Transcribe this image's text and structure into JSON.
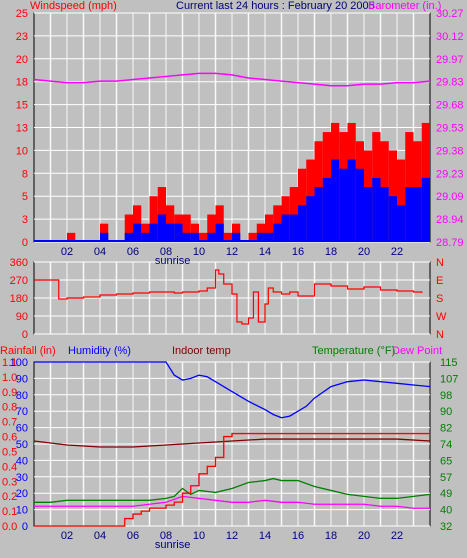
{
  "colors": {
    "background": "#c0c0c0",
    "plot_bg": "#c0c0c0",
    "grid": "#ffffff",
    "wind_gust": "#ff0000",
    "wind_avg": "#0000ff",
    "barometer": "#ff00ff",
    "direction": "#ff0000",
    "rainfall": "#ff0000",
    "humidity": "#0000ff",
    "indoor": "#800000",
    "temperature": "#008000",
    "dewpoint": "#ff00ff",
    "axis_text_time": "#000080"
  },
  "header": {
    "left": "Windspeed (mph)",
    "center": "Current last 24 hours : February 20 2005",
    "right": "Barometer (in.)"
  },
  "time_labels": [
    "02",
    "04",
    "06",
    "08",
    "10",
    "12",
    "14",
    "16",
    "18",
    "20",
    "22"
  ],
  "sunrise_label": "sunrise",
  "chart_data": [
    {
      "type": "line",
      "title": "Current last 24 hours : February 20 2005",
      "ylabel": "Windspeed (mph)",
      "y2label": "Barometer (in.)",
      "x_unit": "hour",
      "xlim": [
        0,
        24
      ],
      "ylim": [
        0,
        25
      ],
      "y2lim": [
        28.79,
        30.27
      ],
      "y_ticks": [
        "0",
        "3",
        "5",
        "8",
        "10",
        "13",
        "15",
        "18",
        "20",
        "23",
        "25"
      ],
      "y2_ticks": [
        "28.79",
        "28.94",
        "29.09",
        "29.23",
        "29.38",
        "29.53",
        "29.68",
        "29.83",
        "29.97",
        "30.12",
        "30.27"
      ],
      "grid": true,
      "series": [
        {
          "name": "Barometer",
          "axis": "y2",
          "x": [
            0,
            1,
            2,
            3,
            4,
            5,
            6,
            7,
            8,
            9,
            10,
            11,
            12,
            13,
            14,
            15,
            16,
            17,
            18,
            19,
            20,
            21,
            22,
            23,
            24
          ],
          "values": [
            29.84,
            29.83,
            29.82,
            29.82,
            29.83,
            29.83,
            29.84,
            29.85,
            29.86,
            29.87,
            29.88,
            29.88,
            29.87,
            29.85,
            29.84,
            29.83,
            29.82,
            29.81,
            29.8,
            29.8,
            29.81,
            29.81,
            29.82,
            29.82,
            29.83
          ]
        },
        {
          "name": "Windspeed gust",
          "axis": "y",
          "x": [
            0,
            1,
            2,
            3,
            4,
            5,
            5.5,
            6,
            6.5,
            7,
            7.5,
            8,
            8.5,
            9,
            9.5,
            10,
            10.5,
            11,
            11.5,
            12,
            12.5,
            13,
            13.5,
            14,
            14.5,
            15,
            15.5,
            16,
            16.5,
            17,
            17.5,
            18,
            18.5,
            19,
            19.5,
            20,
            20.5,
            21,
            21.5,
            22,
            22.5,
            23,
            23.5
          ],
          "values": [
            0,
            0,
            1,
            0,
            2,
            0,
            3,
            4,
            2,
            5,
            6,
            4,
            3,
            3,
            2,
            1,
            3,
            4,
            1,
            2,
            0,
            1,
            2,
            3,
            4,
            5,
            6,
            8,
            9,
            11,
            12,
            13,
            12,
            13,
            11,
            10,
            12,
            11,
            10,
            9,
            12,
            11,
            13
          ]
        },
        {
          "name": "Windspeed average",
          "axis": "y",
          "x": [
            0,
            1,
            2,
            3,
            4,
            5,
            5.5,
            6,
            6.5,
            7,
            7.5,
            8,
            8.5,
            9,
            9.5,
            10,
            10.5,
            11,
            11.5,
            12,
            12.5,
            13,
            13.5,
            14,
            14.5,
            15,
            15.5,
            16,
            16.5,
            17,
            17.5,
            18,
            18.5,
            19,
            19.5,
            20,
            20.5,
            21,
            21.5,
            22,
            22.5,
            23,
            23.5
          ],
          "values": [
            0,
            0,
            0,
            0,
            1,
            0,
            1,
            2,
            1,
            2,
            3,
            2,
            2,
            1,
            1,
            0,
            1,
            2,
            0,
            1,
            0,
            0,
            1,
            1,
            2,
            3,
            3,
            4,
            5,
            6,
            7,
            9,
            8,
            9,
            8,
            6,
            7,
            6,
            5,
            4,
            6,
            6,
            7
          ]
        }
      ]
    },
    {
      "type": "line",
      "ylabel": "Wind direction",
      "x_unit": "hour",
      "xlim": [
        0,
        24
      ],
      "ylim": [
        0,
        360
      ],
      "y_ticks": [
        "0",
        "90",
        "180",
        "270",
        "360"
      ],
      "y2_ticks": [
        "N",
        "W",
        "S",
        "E",
        "N"
      ],
      "grid": true,
      "series": [
        {
          "name": "Wind direction",
          "x": [
            0,
            1,
            1.5,
            2,
            3,
            4,
            5,
            6,
            7,
            8,
            8.5,
            9,
            10,
            10.5,
            11,
            11.2,
            11.5,
            12,
            12.3,
            12.6,
            13,
            13.3,
            13.6,
            14,
            14.2,
            14.5,
            15,
            15.5,
            16,
            17,
            18,
            19,
            20,
            21,
            22,
            23,
            23.5
          ],
          "values": [
            270,
            270,
            175,
            180,
            185,
            195,
            200,
            205,
            210,
            210,
            205,
            210,
            215,
            230,
            320,
            300,
            250,
            200,
            60,
            50,
            80,
            210,
            60,
            150,
            230,
            210,
            200,
            210,
            190,
            250,
            240,
            225,
            235,
            220,
            215,
            210,
            205
          ]
        }
      ]
    },
    {
      "type": "line",
      "ylabel": "Rainfall (in)",
      "y2label": "Temperature (°F)",
      "x_unit": "hour",
      "xlim": [
        0,
        24
      ],
      "y_left_rain": [
        "0.0",
        "0.1",
        "0.2",
        "0.3",
        "0.4",
        "0.5",
        "0.6",
        "0.7",
        "0.8",
        "0.9",
        "1.0",
        "1.1"
      ],
      "y_left_hum": [
        "0",
        "10",
        "20",
        "30",
        "40",
        "50",
        "60",
        "70",
        "80",
        "90",
        "100"
      ],
      "y_right_temp": [
        "32",
        "40",
        "49",
        "57",
        "65",
        "74",
        "82",
        "90",
        "98",
        "107",
        "115"
      ],
      "legend": [
        "Rainfall (in)",
        "Humidity (%)",
        "Indoor temp",
        "Temperature (°F)",
        "Dew Point"
      ],
      "grid": true,
      "series": [
        {
          "name": "Humidity (%)",
          "axis": "hum",
          "x": [
            0,
            1,
            2,
            3,
            4,
            5,
            6,
            7,
            8,
            8.5,
            9,
            9.5,
            10,
            10.5,
            11,
            12,
            13,
            14,
            14.5,
            15,
            15.5,
            16,
            16.5,
            17,
            18,
            19,
            20,
            21,
            22,
            23,
            24
          ],
          "values": [
            100,
            100,
            100,
            100,
            100,
            100,
            100,
            100,
            100,
            92,
            89,
            90,
            92,
            91,
            88,
            82,
            76,
            71,
            68,
            66,
            67,
            70,
            73,
            78,
            85,
            88,
            89,
            88,
            87,
            86,
            85
          ]
        },
        {
          "name": "Indoor temp",
          "axis": "temp",
          "x": [
            0,
            2,
            4,
            6,
            8,
            10,
            12,
            14,
            16,
            18,
            20,
            22,
            24
          ],
          "values": [
            75,
            73,
            72,
            72,
            73,
            74,
            75,
            76,
            76,
            76,
            76,
            76,
            75
          ]
        },
        {
          "name": "Temperature (°F)",
          "axis": "temp",
          "x": [
            0,
            1,
            2,
            3,
            4,
            5,
            6,
            7,
            8,
            8.5,
            9,
            9.5,
            10,
            11,
            12,
            13,
            14,
            14.5,
            15,
            16,
            17,
            18,
            19,
            20,
            21,
            22,
            23,
            24
          ],
          "values": [
            44,
            44,
            45,
            45,
            45,
            45,
            45,
            45,
            46,
            47,
            51,
            48,
            50,
            49,
            51,
            54,
            55,
            56,
            55,
            55,
            52,
            50,
            48,
            47,
            46,
            46,
            47,
            48
          ]
        },
        {
          "name": "Dew Point",
          "axis": "temp",
          "x": [
            0,
            1,
            2,
            3,
            4,
            5,
            6,
            7,
            8,
            9,
            10,
            11,
            12,
            13,
            14,
            15,
            16,
            17,
            18,
            19,
            20,
            21,
            22,
            23,
            24
          ],
          "values": [
            42,
            42,
            42,
            42,
            42,
            42,
            42,
            43,
            44,
            47,
            46,
            45,
            44,
            44,
            45,
            44,
            44,
            43,
            43,
            43,
            43,
            42,
            42,
            41,
            41
          ]
        },
        {
          "name": "Rainfall (in)",
          "axis": "rain",
          "x": [
            0,
            1,
            2,
            3,
            4,
            5,
            5.5,
            6,
            6.5,
            7,
            8,
            8.5,
            9,
            9.5,
            10,
            10.5,
            11,
            11.5,
            12,
            13,
            14,
            24
          ],
          "values": [
            0,
            0,
            0,
            0,
            0,
            0,
            0.05,
            0.08,
            0.1,
            0.12,
            0.14,
            0.16,
            0.22,
            0.27,
            0.35,
            0.4,
            0.46,
            0.6,
            0.62,
            0.62,
            0.62,
            0.62
          ]
        }
      ]
    }
  ]
}
